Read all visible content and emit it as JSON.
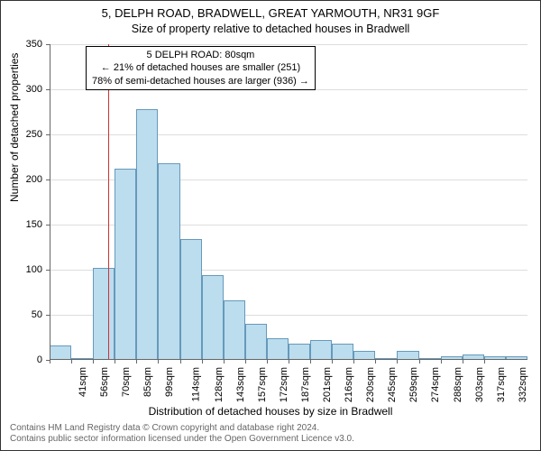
{
  "title_line1": "5, DELPH ROAD, BRADWELL, GREAT YARMOUTH, NR31 9GF",
  "title_line2": "Size of property relative to detached houses in Bradwell",
  "chart": {
    "type": "histogram",
    "ylabel": "Number of detached properties",
    "xlabel": "Distribution of detached houses by size in Bradwell",
    "ylim": [
      0,
      350
    ],
    "ytick_step": 50,
    "yticks": [
      0,
      50,
      100,
      150,
      200,
      250,
      300,
      350
    ],
    "xtick_labels": [
      "41sqm",
      "56sqm",
      "70sqm",
      "85sqm",
      "99sqm",
      "114sqm",
      "128sqm",
      "143sqm",
      "157sqm",
      "172sqm",
      "187sqm",
      "201sqm",
      "216sqm",
      "230sqm",
      "245sqm",
      "259sqm",
      "274sqm",
      "288sqm",
      "303sqm",
      "317sqm",
      "332sqm"
    ],
    "values": [
      16,
      2,
      102,
      212,
      278,
      218,
      134,
      94,
      66,
      40,
      24,
      18,
      22,
      18,
      10,
      2,
      10,
      2,
      4,
      6,
      4,
      4
    ],
    "bar_color": "#bbddee",
    "bar_border_color": "#6699bb",
    "grid_color": "#dddddd",
    "axis_color": "#666666",
    "background_color": "#ffffff",
    "marker_value_sqm": 80,
    "marker_color": "#cc3333",
    "label_fontsize": 11,
    "title_fontsize": 13
  },
  "annotation": {
    "line1": "5 DELPH ROAD: 80sqm",
    "line2": "← 21% of detached houses are smaller (251)",
    "line3": "78% of semi-detached houses are larger (936) →"
  },
  "footer": {
    "line1": "Contains HM Land Registry data © Crown copyright and database right 2024.",
    "line2": "Contains public sector information licensed under the Open Government Licence v3.0."
  }
}
